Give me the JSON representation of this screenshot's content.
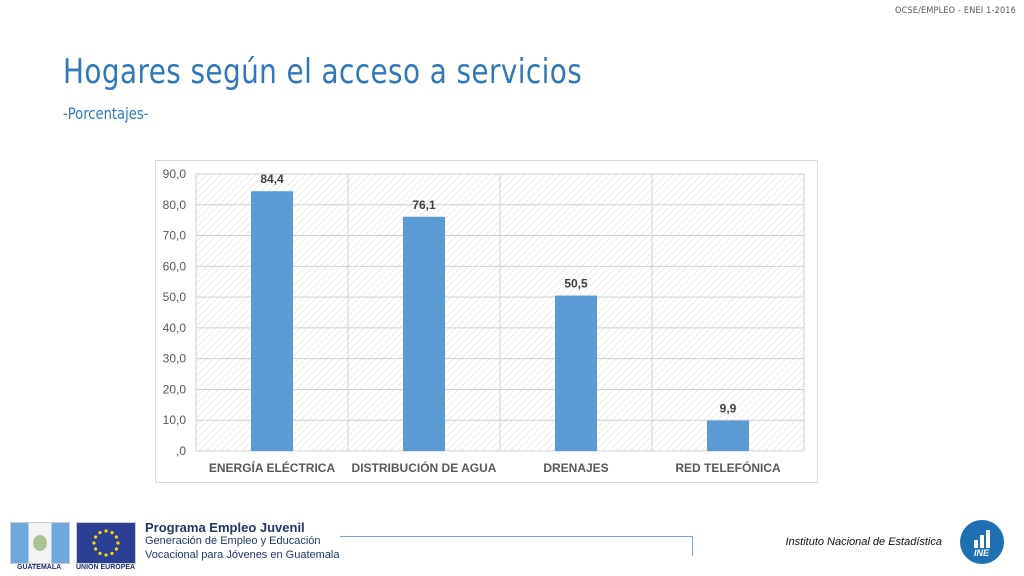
{
  "header": {
    "ref": "OCSE/EMPLEO - ENEI 1-2016"
  },
  "slide": {
    "title": "Hogares según el acceso a servicios",
    "subtitle": "-Porcentajes-"
  },
  "chart_data": {
    "type": "bar",
    "title": "",
    "xlabel": "",
    "ylabel": "",
    "categories": [
      "ENERGÍA ELÉCTRICA",
      "DISTRIBUCIÓN DE AGUA",
      "DRENAJES",
      "RED TELEFÓNICA"
    ],
    "values": [
      84.4,
      76.1,
      50.5,
      9.9
    ],
    "data_labels": [
      "84,4",
      "76,1",
      "50,5",
      "9,9"
    ],
    "ylim": [
      0,
      90
    ],
    "yticks": [
      ",0",
      "10,0",
      "20,0",
      "30,0",
      "40,0",
      "50,0",
      "60,0",
      "70,0",
      "80,0",
      "90,0"
    ],
    "grid": true,
    "plot_area_pattern": "diagonal-hatch",
    "bar_color": "#5b9bd5"
  },
  "footer": {
    "flag_gt_label": "GUATEMALA",
    "flag_eu_label": "UNIÓN EUROPEA",
    "program_title": "Programa Empleo Juvenil",
    "program_line1": "Generación de Empleo y Educación",
    "program_line2": "Vocacional para Jóvenes en Guatemala",
    "institution": "Instituto Nacional de Estadística",
    "logo_text": "INE",
    "icons": [
      "guatemala-flag-icon",
      "eu-flag-icon",
      "ine-logo-icon"
    ]
  }
}
